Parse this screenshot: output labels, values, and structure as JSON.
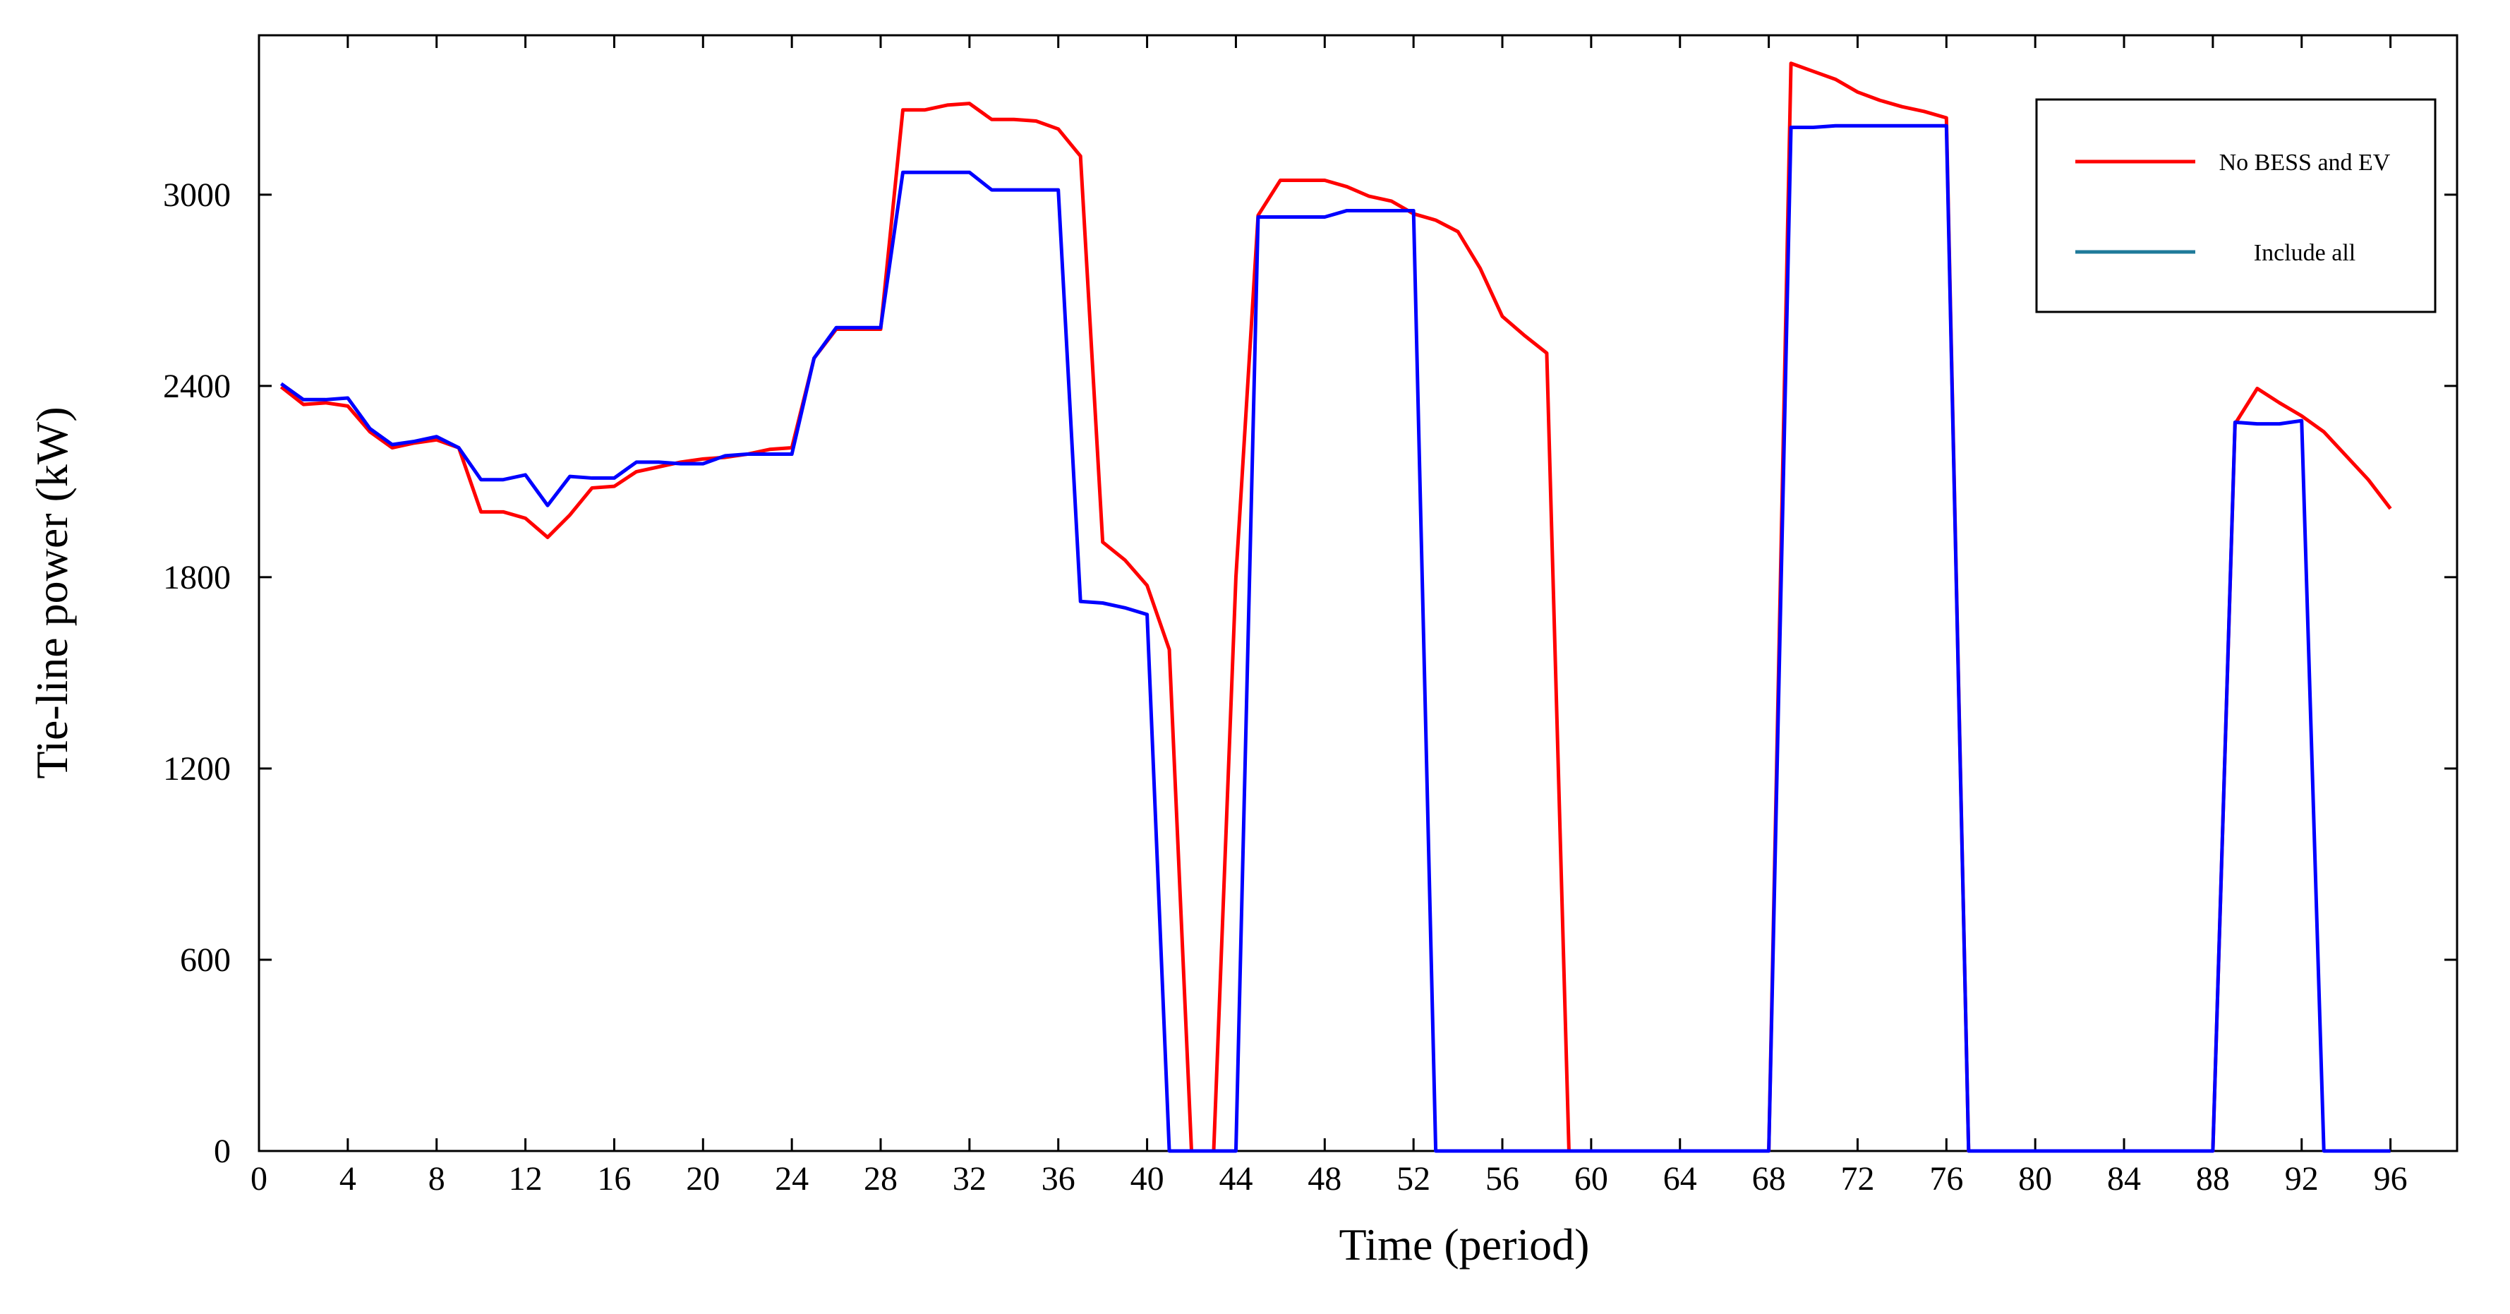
{
  "chart_data": {
    "type": "line",
    "xlabel": "Time (period)",
    "ylabel": "Tie-line power (kW)",
    "x": [
      1,
      2,
      3,
      4,
      5,
      6,
      7,
      8,
      9,
      10,
      11,
      12,
      13,
      14,
      15,
      16,
      17,
      18,
      19,
      20,
      21,
      22,
      23,
      24,
      25,
      26,
      27,
      28,
      29,
      30,
      31,
      32,
      33,
      34,
      35,
      36,
      37,
      38,
      39,
      40,
      41,
      42,
      43,
      44,
      45,
      46,
      47,
      48,
      49,
      50,
      51,
      52,
      53,
      54,
      55,
      56,
      57,
      58,
      59,
      60,
      61,
      62,
      63,
      64,
      65,
      66,
      67,
      68,
      69,
      70,
      71,
      72,
      73,
      74,
      75,
      76,
      77,
      78,
      79,
      80,
      81,
      82,
      83,
      84,
      85,
      86,
      87,
      88,
      89,
      90,
      91,
      92,
      93,
      94,
      95,
      96
    ],
    "series": [
      {
        "name": "No BESS and EV",
        "color": "#ff0000",
        "legend_color": "#ff0000",
        "values": [
          2397,
          2342,
          2347,
          2337,
          2256,
          2206,
          2221,
          2231,
          2206,
          2005,
          2005,
          1985,
          1925,
          1995,
          2080,
          2085,
          2131,
          2146,
          2161,
          2171,
          2176,
          2186,
          2201,
          2206,
          2487,
          2578,
          2578,
          2578,
          3266,
          3266,
          3281,
          3286,
          3236,
          3236,
          3231,
          3206,
          3121,
          1910,
          1854,
          1774,
          1573,
          0,
          0,
          1800,
          2935,
          3045,
          3045,
          3045,
          3025,
          2995,
          2980,
          2940,
          2920,
          2884,
          2769,
          2618,
          2558,
          2503,
          0,
          0,
          0,
          0,
          0,
          0,
          0,
          0,
          0,
          0,
          3412,
          3387,
          3362,
          3322,
          3296,
          3276,
          3261,
          3241,
          0,
          0,
          0,
          0,
          0,
          0,
          0,
          0,
          0,
          0,
          0,
          0,
          2281,
          2392,
          2347,
          2306,
          2256,
          2181,
          2106,
          2015
        ]
      },
      {
        "name": "Include all",
        "color": "#0000ff",
        "legend_color": "#1f7a9a",
        "values": [
          2407,
          2357,
          2357,
          2362,
          2266,
          2216,
          2226,
          2241,
          2206,
          2106,
          2106,
          2121,
          2025,
          2116,
          2111,
          2111,
          2161,
          2161,
          2156,
          2156,
          2181,
          2186,
          2186,
          2186,
          2487,
          2583,
          2583,
          2583,
          3070,
          3070,
          3070,
          3070,
          3015,
          3015,
          3015,
          3015,
          1724,
          1719,
          1704,
          1683,
          0,
          0,
          0,
          0,
          2930,
          2930,
          2930,
          2930,
          2950,
          2950,
          2950,
          2950,
          0,
          0,
          0,
          0,
          0,
          0,
          0,
          0,
          0,
          0,
          0,
          0,
          0,
          0,
          0,
          0,
          3211,
          3211,
          3216,
          3216,
          3216,
          3216,
          3216,
          3216,
          0,
          0,
          0,
          0,
          0,
          0,
          0,
          0,
          0,
          0,
          0,
          0,
          2286,
          2281,
          2281,
          2291,
          0,
          0,
          0,
          0
        ]
      }
    ],
    "xlim": [
      0,
      99
    ],
    "ylim": [
      0,
      3500
    ],
    "xticks": [
      0,
      4,
      8,
      12,
      16,
      20,
      24,
      28,
      32,
      36,
      40,
      44,
      48,
      52,
      56,
      60,
      64,
      68,
      72,
      76,
      80,
      84,
      88,
      92,
      96
    ],
    "yticks": [
      0,
      600,
      1200,
      1800,
      2400,
      3000
    ],
    "legend": "upper right",
    "grid": false
  }
}
